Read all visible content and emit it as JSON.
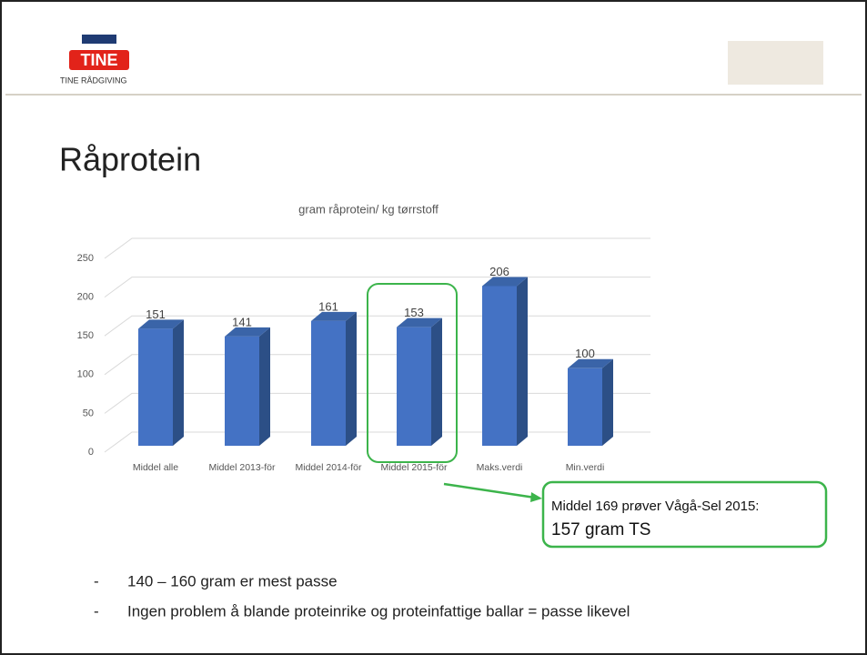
{
  "header": {
    "logo": "TINE",
    "subtitle": "TINE RÅDGIVING"
  },
  "title": "Råprotein",
  "chart_data": {
    "type": "bar3d",
    "title": "gram råprotein/ kg tørrstoff",
    "categories": [
      "Middel alle",
      "Middel 2013-för",
      "Middel 2014-för",
      "Middel 2015-för",
      "Maks.verdi",
      "Min.verdi"
    ],
    "values": [
      151,
      141,
      161,
      153,
      206,
      100
    ],
    "color": "#4472c4",
    "ylim": [
      0,
      250
    ],
    "yticks": [
      0,
      50,
      100,
      150,
      200,
      250
    ],
    "grid": true
  },
  "callout": {
    "line1": "Middel 169 prøver Vågå-Sel 2015:",
    "line2": "157 gram TS"
  },
  "bullets": [
    "140 – 160 gram er mest passe",
    "Ingen problem å blande proteinrike og proteinfattige ballar = passe likevel"
  ]
}
